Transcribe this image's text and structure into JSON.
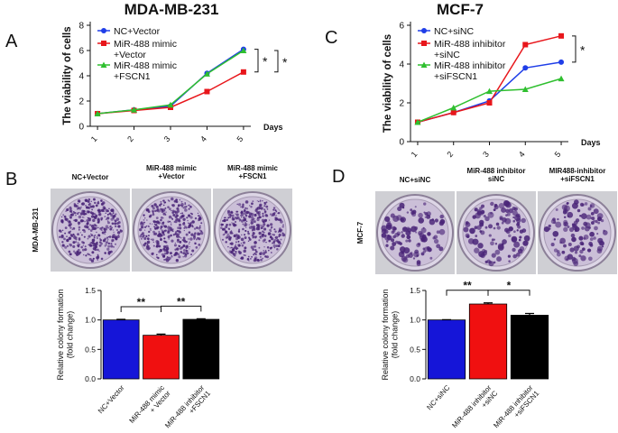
{
  "panel_labels": [
    "A",
    "B",
    "C",
    "D"
  ],
  "plates": [
    {
      "side_label": "MDA-MB-231",
      "labels": [
        "NC+Vector",
        "MiR-488 mimic\n+Vector",
        "MiR-488 mimic\n+FSCN1"
      ]
    },
    {
      "side_label": "MCF-7",
      "labels": [
        "NC+siNC",
        "MiR-488 inhibitor\nsiNC",
        "MIR488-inhibitor\n+siFSCN1"
      ]
    }
  ],
  "chart_data": [
    {
      "type": "line",
      "title": "MDA-MB-231",
      "y_label": "The viability of cells",
      "x_label": "Days",
      "x": [
        1,
        2,
        3,
        4,
        5
      ],
      "xlim": [
        0.8,
        5.2
      ],
      "xticks": [
        1,
        2,
        3,
        4,
        5
      ],
      "ylim": [
        0,
        8
      ],
      "yticks": [
        0,
        2,
        4,
        6,
        8
      ],
      "series": [
        {
          "name": "NC+Vector",
          "color": "#1f3ee8",
          "marker": "circle",
          "values": [
            1.0,
            1.3,
            1.6,
            4.2,
            6.1
          ]
        },
        {
          "name": "MiR-488 mimic\n+Vector",
          "color": "#e8161b",
          "marker": "square",
          "values": [
            1.0,
            1.25,
            1.5,
            2.75,
            4.3
          ]
        },
        {
          "name": "MiR-488 mimic\n+FSCN1",
          "color": "#2fbf2f",
          "marker": "triangle",
          "values": [
            1.0,
            1.3,
            1.7,
            4.15,
            6.0
          ]
        }
      ],
      "annotations": [
        "*",
        "*"
      ]
    },
    {
      "type": "bar",
      "y_label": "Relative colony formation\n(fold change)",
      "categories": [
        "NC+Vector",
        "MiR-488 mimic\n+ Vector",
        "MiR-488 inhibitor\n+FSCN1"
      ],
      "values": [
        1.0,
        0.74,
        1.01
      ],
      "errors": [
        0.01,
        0.02,
        0.01
      ],
      "colors": [
        "#1515d8",
        "#f01010",
        "#000000"
      ],
      "ylim": [
        0,
        1.5
      ],
      "yticks": [
        {
          "value": 0,
          "label": "0.0"
        },
        0.5,
        {
          "value": 1,
          "label": "1.0"
        },
        1.5
      ],
      "annotations": [
        "**",
        "**"
      ]
    },
    {
      "type": "line",
      "title": "MCF-7",
      "y_label": "The viability of cells",
      "x_label": "Days",
      "x": [
        1,
        2,
        3,
        4,
        5
      ],
      "xlim": [
        0.8,
        5.2
      ],
      "xticks": [
        1,
        2,
        3,
        4,
        5
      ],
      "ylim": [
        0,
        6
      ],
      "yticks": [
        0,
        2,
        4,
        6
      ],
      "series": [
        {
          "name": "NC+siNC",
          "color": "#1f3ee8",
          "marker": "circle",
          "values": [
            1.0,
            1.5,
            2.1,
            3.8,
            4.1
          ]
        },
        {
          "name": "MiR-488 inhibitor\n+siNC",
          "color": "#e8161b",
          "marker": "square",
          "values": [
            1.0,
            1.5,
            2.0,
            5.0,
            5.45
          ]
        },
        {
          "name": "MiR-488 inhibitor\n+siFSCN1",
          "color": "#2fbf2f",
          "marker": "triangle",
          "values": [
            1.0,
            1.75,
            2.6,
            2.7,
            3.25
          ]
        }
      ],
      "annotations": [
        "*"
      ]
    },
    {
      "type": "bar",
      "y_label": "Relative colony formation\n(fold change)",
      "categories": [
        "NC+siNC",
        "MiR-488 inhibitor\n+siNC",
        "MiR-488 inhibitor\n+siFSCN1"
      ],
      "values": [
        1.0,
        1.27,
        1.08
      ],
      "errors": [
        0.005,
        0.02,
        0.03
      ],
      "colors": [
        "#1515d8",
        "#f01010",
        "#000000"
      ],
      "ylim": [
        0,
        1.5
      ],
      "yticks": [
        {
          "value": 0,
          "label": "0.0"
        },
        0.5,
        {
          "value": 1,
          "label": "1.0"
        },
        1.5
      ],
      "annotations": [
        "**",
        "*"
      ]
    }
  ]
}
